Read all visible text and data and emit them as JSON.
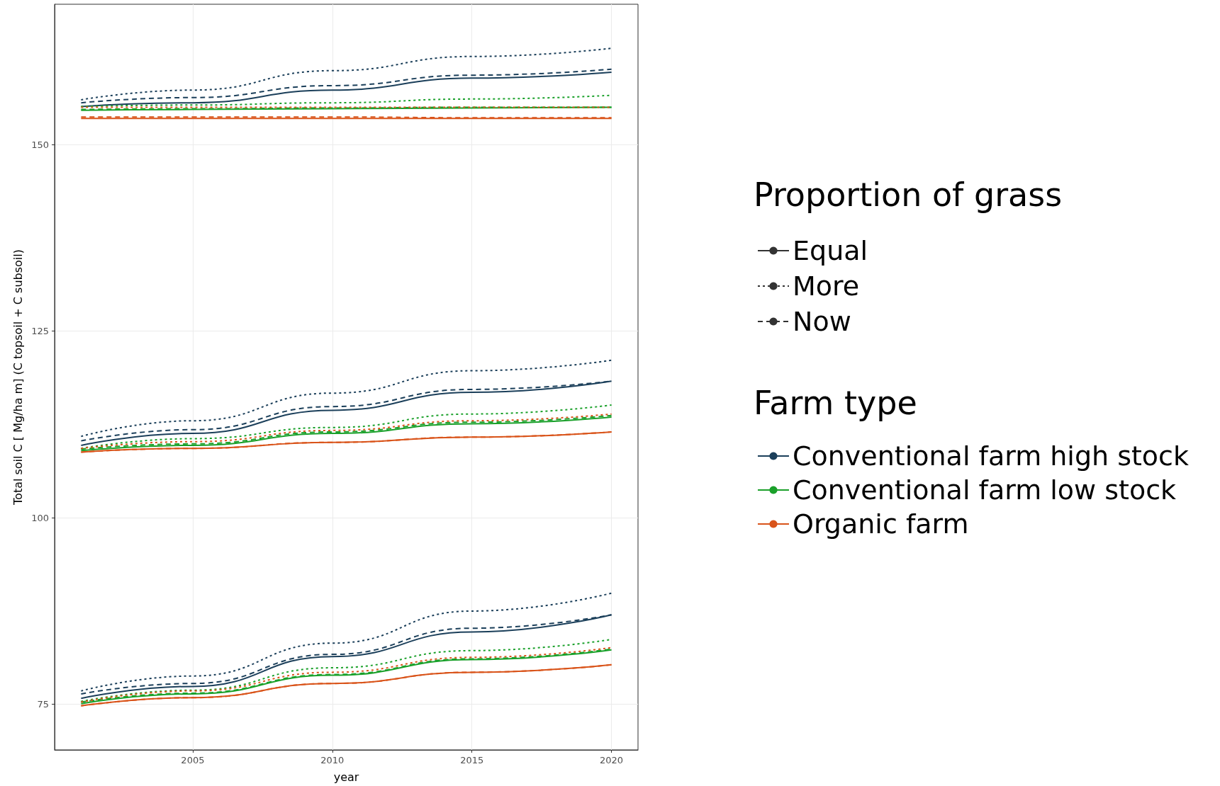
{
  "chart_data": {
    "type": "line",
    "xlabel": "year",
    "ylabel": "Total soil C [ Mg/ha m] (C topsoil + C subsoil)",
    "legend_title": "Farm type",
    "annotations": [
      "Proportion of grass"
    ],
    "x": [
      2001,
      2005,
      2010,
      2015,
      2020
    ],
    "xlim": [
      2000.05,
      2020.95
    ],
    "xticks": [
      2005,
      2010,
      2015,
      2020
    ],
    "ylim": [
      68.9,
      168.8
    ],
    "yticks": [
      75,
      100,
      125,
      150
    ],
    "grid": true,
    "legend": "right",
    "marker": "none",
    "series": [
      {
        "name": "Equal",
        "color": "#333333",
        "line_style": "solid",
        "values": [
          null,
          null,
          null,
          null,
          null
        ]
      },
      {
        "name": "More",
        "color": "#333333",
        "line_style": "dotted",
        "values": [
          null,
          null,
          null,
          null,
          null
        ]
      },
      {
        "name": "Now",
        "color": "#333333",
        "line_style": "dashed",
        "values": [
          null,
          null,
          null,
          null,
          null
        ]
      },
      {
        "name": "Conventional farm high stock",
        "color": "#1b3f5a",
        "line_style": "solid",
        "values": [
          155.1,
          155.6,
          157.3,
          158.9,
          159.7
        ]
      },
      {
        "color": "#1b3f5a",
        "line_style": "dotted",
        "values": [
          156.0,
          157.3,
          159.9,
          161.8,
          162.9
        ]
      },
      {
        "color": "#1b3f5a",
        "line_style": "dashed",
        "values": [
          155.6,
          156.3,
          157.9,
          159.3,
          160.1
        ]
      },
      {
        "color": "#1b3f5a",
        "line_style": "solid",
        "values": [
          109.7,
          111.3,
          114.4,
          116.8,
          118.3
        ]
      },
      {
        "color": "#1b3f5a",
        "line_style": "dotted",
        "values": [
          110.9,
          113.0,
          116.7,
          119.7,
          121.1
        ]
      },
      {
        "color": "#1b3f5a",
        "line_style": "dashed",
        "values": [
          110.3,
          111.8,
          114.9,
          117.2,
          118.3
        ]
      },
      {
        "color": "#1b3f5a",
        "line_style": "solid",
        "values": [
          75.8,
          77.4,
          81.4,
          84.7,
          87.0
        ]
      },
      {
        "color": "#1b3f5a",
        "line_style": "dotted",
        "values": [
          76.8,
          78.8,
          83.2,
          87.5,
          89.9
        ]
      },
      {
        "color": "#1b3f5a",
        "line_style": "dashed",
        "values": [
          76.4,
          77.8,
          81.7,
          85.2,
          87.0
        ]
      },
      {
        "name": "Conventional farm low stock",
        "color": "#1aa02a",
        "line_style": "solid",
        "values": [
          154.6,
          154.7,
          154.8,
          154.9,
          155.0
        ]
      },
      {
        "color": "#1aa02a",
        "line_style": "dotted",
        "values": [
          155.1,
          155.3,
          155.6,
          156.1,
          156.6
        ]
      },
      {
        "color": "#1aa02a",
        "line_style": "dashed",
        "values": [
          154.7,
          154.8,
          154.9,
          155.0,
          155.0
        ]
      },
      {
        "color": "#1aa02a",
        "line_style": "solid",
        "values": [
          109.0,
          109.7,
          111.3,
          112.6,
          113.5
        ]
      },
      {
        "color": "#1aa02a",
        "line_style": "dotted",
        "values": [
          109.3,
          110.6,
          112.1,
          113.9,
          115.1
        ]
      },
      {
        "color": "#1aa02a",
        "line_style": "dashed",
        "values": [
          109.2,
          109.9,
          111.5,
          112.8,
          113.7
        ]
      },
      {
        "color": "#1aa02a",
        "line_style": "solid",
        "values": [
          75.1,
          76.4,
          78.9,
          81.0,
          82.3
        ]
      },
      {
        "color": "#1aa02a",
        "line_style": "dotted",
        "values": [
          75.4,
          76.9,
          79.9,
          82.2,
          83.7
        ]
      },
      {
        "color": "#1aa02a",
        "line_style": "dashed",
        "values": [
          75.3,
          76.5,
          79.0,
          81.1,
          82.4
        ]
      },
      {
        "name": "Organic farm",
        "color": "#d9541a",
        "line_style": "solid",
        "values": [
          153.5,
          153.5,
          153.5,
          153.5,
          153.5
        ]
      },
      {
        "color": "#d9541a",
        "line_style": "dotted",
        "values": [
          155.0,
          155.0,
          155.0,
          155.0,
          155.0
        ]
      },
      {
        "color": "#d9541a",
        "line_style": "dashed",
        "values": [
          153.7,
          153.7,
          153.7,
          153.6,
          153.6
        ]
      },
      {
        "color": "#d9541a",
        "line_style": "solid",
        "values": [
          108.8,
          109.3,
          110.1,
          110.8,
          111.5
        ]
      },
      {
        "color": "#d9541a",
        "line_style": "dotted",
        "values": [
          109.3,
          110.2,
          111.7,
          113.0,
          113.9
        ]
      },
      {
        "color": "#d9541a",
        "line_style": "dashed",
        "values": [
          108.8,
          109.3,
          110.1,
          110.8,
          111.5
        ]
      },
      {
        "color": "#d9541a",
        "line_style": "solid",
        "values": [
          74.8,
          75.9,
          77.8,
          79.3,
          80.3
        ]
      },
      {
        "color": "#d9541a",
        "line_style": "dotted",
        "values": [
          75.3,
          76.8,
          79.3,
          81.3,
          82.6
        ]
      },
      {
        "color": "#d9541a",
        "line_style": "dashed",
        "values": [
          74.8,
          75.9,
          77.8,
          79.3,
          80.3
        ]
      }
    ]
  }
}
